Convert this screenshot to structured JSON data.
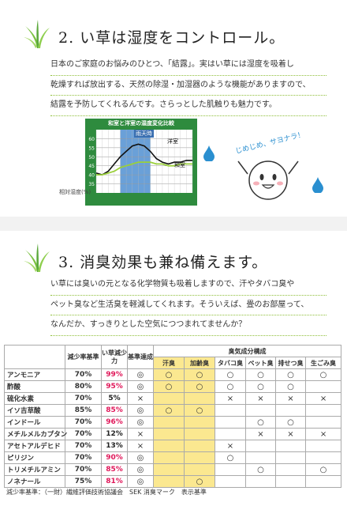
{
  "section1": {
    "number": "2.",
    "title": "い草は湿度をコントロール。",
    "lines": [
      "日本のご家庭のお悩みのひとつ、「結露」。実はい草には湿度を吸着し",
      "乾燥すれば放出する、天然の除湿・加湿器のような機能がありますので、",
      "結露を予防してくれるんです。さらっとした肌触りも魅力です。"
    ]
  },
  "chart": {
    "title": "和室と洋室の湿度変化比較",
    "band_label": "雨天時",
    "ylabel": "相対湿度(%)",
    "series_labels": [
      "洋室",
      "和室"
    ]
  },
  "chart_data": {
    "type": "line",
    "title": "和室と洋室の湿度変化比較",
    "ylabel": "相対湿度(%)",
    "ylim": [
      30,
      65
    ],
    "y_ticks": [
      35,
      40,
      45,
      50,
      55,
      60
    ],
    "x": [
      0,
      1,
      2,
      3,
      4,
      5,
      6,
      7,
      8,
      9,
      10,
      11,
      12,
      13,
      14,
      15,
      16
    ],
    "highlight": {
      "label": "雨天時",
      "from": 4,
      "to": 9
    },
    "series": [
      {
        "name": "洋室",
        "color": "#111111",
        "values": [
          41,
          40,
          42,
          46,
          50,
          53,
          56,
          57,
          56,
          53,
          49,
          47,
          46,
          47,
          47,
          48,
          48
        ]
      },
      {
        "name": "和室",
        "color": "#9ad03a",
        "values": [
          40,
          40,
          41,
          42,
          44,
          45,
          46,
          47,
          47,
          47,
          46,
          46,
          45,
          45,
          46,
          46,
          46
        ]
      }
    ]
  },
  "mascot": {
    "speech": "じめじめ、サヨナラ！"
  },
  "section2": {
    "number": "3.",
    "title": "消臭効果も兼ね備えます。",
    "lines": [
      "い草には臭いの元となる化学物質も吸着しますので、汗やタバコ臭や",
      "ペット臭など生活臭を軽減してくれます。そういえば、畳のお部屋って、",
      "なんだか、すっきりとした空気につつまれてませんか？"
    ]
  },
  "table": {
    "headers": {
      "rate": "減少率基準",
      "power": "い草減少力",
      "std": "基準達成",
      "group": "臭気成分構成",
      "cols": [
        "汗臭",
        "加齢臭",
        "タバコ臭",
        "ペット臭",
        "排せつ臭",
        "生ごみ臭"
      ]
    },
    "rows": [
      {
        "name": "アンモニア",
        "rate": "70%",
        "power": "99%",
        "std": "◎",
        "marks": [
          "○",
          "○",
          "○",
          "○",
          "○",
          "○"
        ]
      },
      {
        "name": "酢酸",
        "rate": "80%",
        "power": "95%",
        "std": "◎",
        "marks": [
          "○",
          "○",
          "○",
          "○",
          "○",
          ""
        ]
      },
      {
        "name": "硫化水素",
        "rate": "70%",
        "power": "5%",
        "std": "×",
        "marks": [
          "",
          "",
          "×",
          "×",
          "×",
          "×"
        ]
      },
      {
        "name": "イソ吉草酸",
        "rate": "85%",
        "power": "85%",
        "std": "◎",
        "marks": [
          "○",
          "○",
          "",
          "",
          "",
          ""
        ]
      },
      {
        "name": "インドール",
        "rate": "70%",
        "power": "96%",
        "std": "◎",
        "marks": [
          "",
          "",
          "",
          "○",
          "○",
          ""
        ]
      },
      {
        "name": "メチルメルカプタン",
        "rate": "70%",
        "power": "12%",
        "std": "×",
        "marks": [
          "",
          "",
          "",
          "×",
          "×",
          "×"
        ]
      },
      {
        "name": "アセトアルデヒド",
        "rate": "70%",
        "power": "13%",
        "std": "×",
        "marks": [
          "",
          "",
          "×",
          "",
          "",
          ""
        ]
      },
      {
        "name": "ピリジン",
        "rate": "70%",
        "power": "90%",
        "std": "◎",
        "marks": [
          "",
          "",
          "○",
          "",
          "",
          ""
        ]
      },
      {
        "name": "トリメチルアミン",
        "rate": "70%",
        "power": "85%",
        "std": "◎",
        "marks": [
          "",
          "",
          "",
          "○",
          "",
          "○"
        ]
      },
      {
        "name": "ノネナール",
        "rate": "75%",
        "power": "81%",
        "std": "◎",
        "marks": [
          "",
          "○",
          "",
          "",
          "",
          ""
        ]
      }
    ],
    "footnote": "減少率基準：（一財）繊維評価技術協議会　SEK 消臭マーク　表示基準"
  },
  "colors": {
    "accent_green": "#8fbf3a",
    "chart_green": "#2e8b3e",
    "chart_band": "#6aa0d8",
    "percent_pink": "#e0185a",
    "yellow": "#fbe890",
    "drop_blue": "#2a8fd0"
  }
}
